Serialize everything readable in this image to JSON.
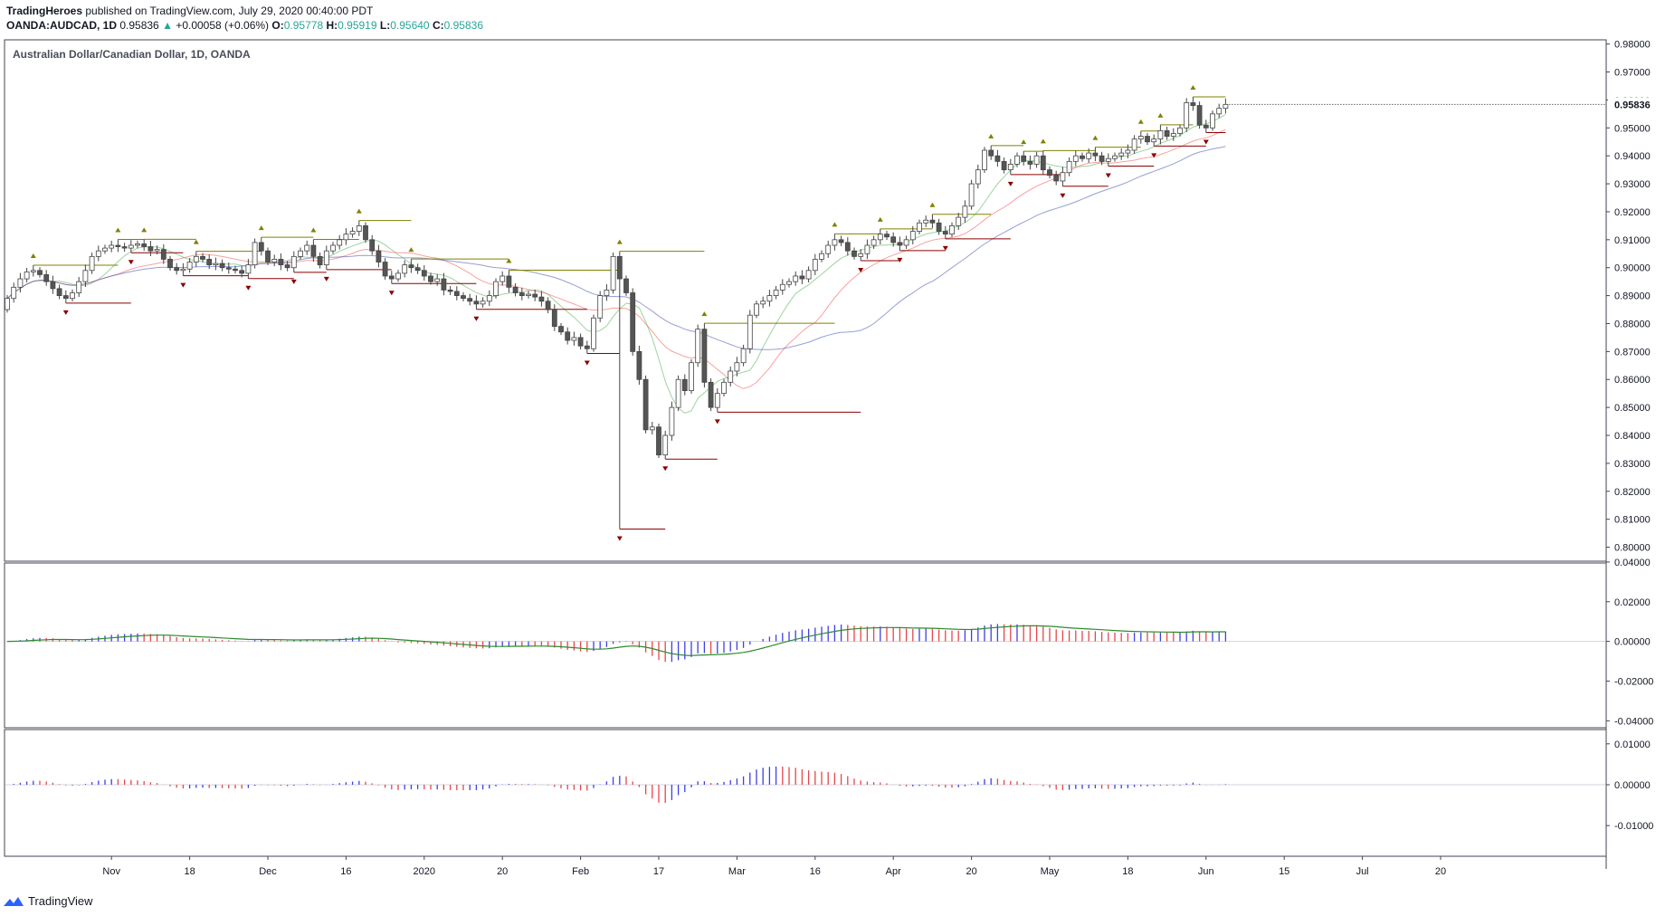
{
  "header": {
    "publisher": "TradingHeroes",
    "published_text": "published on TradingView.com, July 29, 2020 00:40:00 PDT",
    "symbol": "OANDA:AUDCAD, 1D",
    "last": "0.95836",
    "change_arrow": "▲",
    "change": "+0.00058 (+0.06%)",
    "o_label": "O:",
    "o_value": "0.95778",
    "h_label": "H:",
    "h_value": "0.95919",
    "l_label": "L:",
    "l_value": "0.95640",
    "c_label": "C:",
    "c_value": "0.95836"
  },
  "footer": {
    "brand": "TradingView",
    "icon": "tradingview-logo-icon"
  },
  "colors": {
    "bull_body": "#ffffff",
    "bear_body": "#555555",
    "wick": "#444444",
    "ma_fast": "#4caf50",
    "ma_mid": "#ef5350",
    "ma_slow": "#3f51b5",
    "hist_up": "#3f3fe8",
    "hist_down": "#e8454a",
    "signal": "#2e8b2e",
    "fractal_up": "#808000",
    "fractal_down": "#8b0000",
    "price_label": "#131722"
  },
  "chart_data": [
    {
      "type": "candlestick",
      "title": "Australian Dollar/Canadian Dollar, 1D, OANDA",
      "y_ticks": [
        "0.98000",
        "0.97000",
        "0.96000",
        "0.95000",
        "0.94000",
        "0.93000",
        "0.92000",
        "0.91000",
        "0.90000",
        "0.89000",
        "0.88000",
        "0.87000",
        "0.86000",
        "0.85000",
        "0.84000",
        "0.83000",
        "0.82000",
        "0.81000",
        "0.80000"
      ],
      "ylim": [
        0.795,
        0.9815
      ],
      "x_labels": [
        "Nov",
        "18",
        "Dec",
        "16",
        "2020",
        "20",
        "Feb",
        "17",
        "Mar",
        "16",
        "Apr",
        "20",
        "May",
        "18",
        "Jun",
        "15",
        "Jul",
        "20"
      ],
      "x_label_index": [
        16,
        28,
        40,
        52,
        64,
        76,
        88,
        100,
        112,
        124,
        136,
        148,
        160,
        172,
        184,
        196,
        208,
        220
      ],
      "last_price_label": "0.95836",
      "close": [
        0.889,
        0.893,
        0.896,
        0.8985,
        0.899,
        0.8975,
        0.895,
        0.8925,
        0.89,
        0.889,
        0.891,
        0.895,
        0.899,
        0.904,
        0.906,
        0.907,
        0.908,
        0.9075,
        0.907,
        0.908,
        0.9085,
        0.9075,
        0.906,
        0.9065,
        0.903,
        0.9,
        0.899,
        0.8995,
        0.902,
        0.904,
        0.903,
        0.901,
        0.9015,
        0.9,
        0.8995,
        0.899,
        0.898,
        0.901,
        0.909,
        0.906,
        0.902,
        0.903,
        0.901,
        0.9,
        0.904,
        0.906,
        0.908,
        0.904,
        0.901,
        0.906,
        0.908,
        0.91,
        0.912,
        0.913,
        0.915,
        0.91,
        0.906,
        0.902,
        0.897,
        0.896,
        0.898,
        0.901,
        0.9,
        0.899,
        0.897,
        0.895,
        0.896,
        0.892,
        0.8915,
        0.89,
        0.889,
        0.888,
        0.887,
        0.888,
        0.89,
        0.895,
        0.897,
        0.893,
        0.891,
        0.89,
        0.8905,
        0.8895,
        0.888,
        0.885,
        0.879,
        0.877,
        0.874,
        0.875,
        0.872,
        0.871,
        0.882,
        0.89,
        0.892,
        0.904,
        0.896,
        0.891,
        0.87,
        0.86,
        0.842,
        0.843,
        0.833,
        0.84,
        0.85,
        0.86,
        0.856,
        0.866,
        0.878,
        0.859,
        0.85,
        0.855,
        0.859,
        0.863,
        0.866,
        0.871,
        0.883,
        0.887,
        0.888,
        0.89,
        0.892,
        0.894,
        0.895,
        0.897,
        0.896,
        0.899,
        0.903,
        0.905,
        0.908,
        0.91,
        0.909,
        0.906,
        0.904,
        0.905,
        0.908,
        0.91,
        0.912,
        0.911,
        0.909,
        0.908,
        0.91,
        0.913,
        0.916,
        0.917,
        0.916,
        0.913,
        0.912,
        0.915,
        0.918,
        0.922,
        0.93,
        0.935,
        0.942,
        0.94,
        0.938,
        0.935,
        0.937,
        0.94,
        0.938,
        0.937,
        0.94,
        0.935,
        0.933,
        0.931,
        0.934,
        0.938,
        0.94,
        0.939,
        0.941,
        0.94,
        0.938,
        0.939,
        0.94,
        0.941,
        0.942,
        0.946,
        0.947,
        0.945,
        0.946,
        0.949,
        0.947,
        0.948,
        0.95,
        0.959,
        0.958,
        0.951,
        0.95,
        0.955,
        0.957,
        0.9584
      ]
    },
    {
      "type": "bar",
      "name": "oscillator-1",
      "y_ticks": [
        "0.04000",
        "0.02000",
        "0.00000",
        "-0.02000",
        "-0.04000"
      ],
      "ylim": [
        -0.0435,
        0.0395
      ]
    },
    {
      "type": "bar",
      "name": "oscillator-2",
      "y_ticks": [
        "0.01000",
        "0.00000",
        "-0.01000"
      ],
      "ylim": [
        -0.0175,
        0.0135
      ]
    }
  ]
}
